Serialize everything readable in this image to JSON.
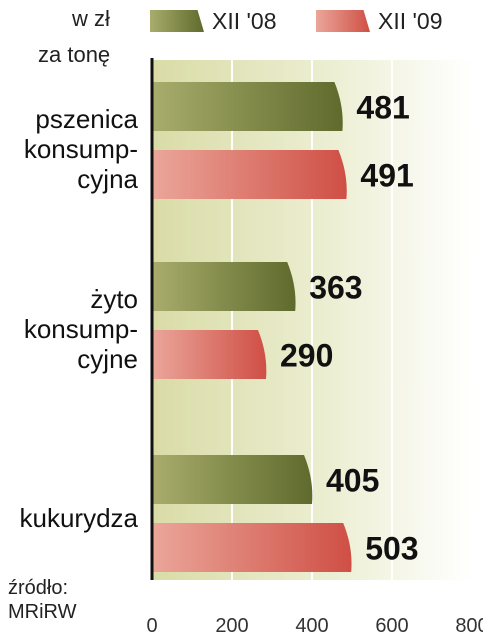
{
  "unit_lines": [
    "w zł",
    "za tonę"
  ],
  "source_lines": [
    "źródło:",
    "MRiRW"
  ],
  "colors": {
    "series_2008": "#6f7a38",
    "series_2009": "#d9635a",
    "background_band": "#e4e6bf"
  },
  "chart_data": {
    "type": "bar",
    "orientation": "horizontal",
    "title": "",
    "xlabel": "",
    "ylabel": "",
    "categories": [
      "pszenica konsump-cyjna",
      "żyto konsump-cyjne",
      "kukurydza"
    ],
    "category_lines": [
      [
        "pszenica",
        "konsump-",
        "cyjna"
      ],
      [
        "żyto",
        "konsump-",
        "cyjne"
      ],
      [
        "kukurydza"
      ]
    ],
    "series": [
      {
        "name": "XII '08",
        "values": [
          481,
          363,
          405
        ]
      },
      {
        "name": "XII '09",
        "values": [
          491,
          290,
          503
        ]
      }
    ],
    "xlim": [
      0,
      800
    ],
    "xticks": [
      0,
      200,
      400,
      600,
      800
    ],
    "grid": true,
    "legend": "top"
  }
}
